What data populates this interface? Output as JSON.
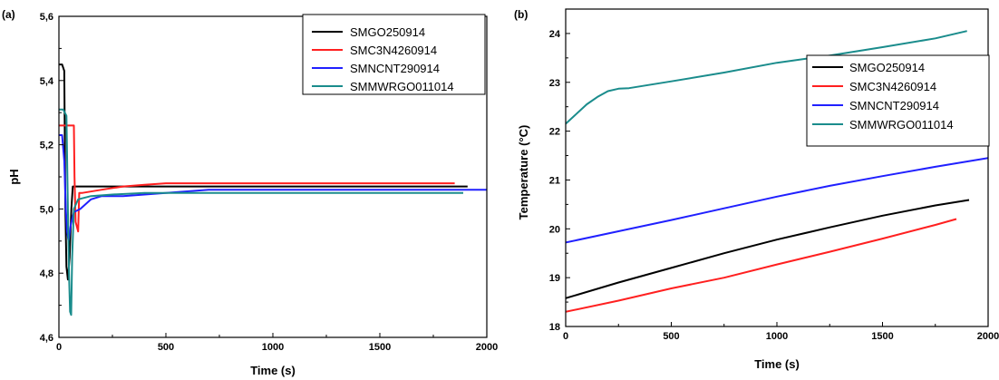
{
  "chart_data": [
    {
      "panel_label": "(a)",
      "type": "line",
      "xlabel": "Time (s)",
      "ylabel": "pH",
      "xlim": [
        0,
        2000
      ],
      "ylim": [
        4.6,
        5.6
      ],
      "xticks": [
        0,
        500,
        1000,
        1500,
        2000
      ],
      "xtick_labels": [
        "0",
        "500",
        "1000",
        "1500",
        "2000"
      ],
      "yticks": [
        4.6,
        4.8,
        5.0,
        5.2,
        5.4,
        5.6
      ],
      "ytick_labels": [
        "4,6",
        "4,8",
        "5,0",
        "5,2",
        "5,4",
        "5,6"
      ],
      "grid": false,
      "legend_position": "top-right",
      "series": [
        {
          "name": "SMGO250914",
          "color": "#000000",
          "points": [
            [
              0,
              5.45
            ],
            [
              15,
              5.45
            ],
            [
              25,
              5.43
            ],
            [
              30,
              5.0
            ],
            [
              35,
              4.82
            ],
            [
              42,
              4.78
            ],
            [
              50,
              4.85
            ],
            [
              58,
              5.0
            ],
            [
              65,
              5.07
            ],
            [
              100,
              5.07
            ],
            [
              500,
              5.07
            ],
            [
              1000,
              5.07
            ],
            [
              1500,
              5.07
            ],
            [
              1910,
              5.07
            ]
          ]
        },
        {
          "name": "SMC3N4260914",
          "color": "#ff2020",
          "points": [
            [
              0,
              5.26
            ],
            [
              70,
              5.26
            ],
            [
              73,
              5.1
            ],
            [
              78,
              4.96
            ],
            [
              90,
              4.93
            ],
            [
              95,
              5.05
            ],
            [
              110,
              5.05
            ],
            [
              200,
              5.06
            ],
            [
              300,
              5.07
            ],
            [
              400,
              5.075
            ],
            [
              500,
              5.08
            ],
            [
              550,
              5.08
            ],
            [
              1000,
              5.08
            ],
            [
              1500,
              5.08
            ],
            [
              1850,
              5.08
            ]
          ]
        },
        {
          "name": "SMNCNT290914",
          "color": "#2020ff",
          "points": [
            [
              0,
              5.23
            ],
            [
              15,
              5.23
            ],
            [
              25,
              5.15
            ],
            [
              32,
              5.0
            ],
            [
              38,
              4.93
            ],
            [
              45,
              4.9
            ],
            [
              55,
              4.95
            ],
            [
              70,
              4.99
            ],
            [
              100,
              5.0
            ],
            [
              150,
              5.03
            ],
            [
              200,
              5.04
            ],
            [
              300,
              5.04
            ],
            [
              500,
              5.05
            ],
            [
              700,
              5.06
            ],
            [
              1000,
              5.06
            ],
            [
              1500,
              5.06
            ],
            [
              2000,
              5.06
            ]
          ]
        },
        {
          "name": "SMMWRGO011014",
          "color": "#1a8c8c",
          "points": [
            [
              0,
              5.31
            ],
            [
              20,
              5.31
            ],
            [
              35,
              5.29
            ],
            [
              42,
              5.0
            ],
            [
              47,
              4.8
            ],
            [
              52,
              4.68
            ],
            [
              57,
              4.67
            ],
            [
              62,
              4.85
            ],
            [
              70,
              5.0
            ],
            [
              90,
              5.03
            ],
            [
              150,
              5.04
            ],
            [
              250,
              5.045
            ],
            [
              400,
              5.05
            ],
            [
              1000,
              5.05
            ],
            [
              1500,
              5.05
            ],
            [
              1890,
              5.05
            ]
          ]
        }
      ]
    },
    {
      "panel_label": "(b)",
      "type": "line",
      "xlabel": "Time (s)",
      "ylabel": "Temperature (°C)",
      "xlim": [
        0,
        2000
      ],
      "ylim": [
        18,
        24.5
      ],
      "xticks": [
        0,
        500,
        1000,
        1500,
        2000
      ],
      "xtick_labels": [
        "0",
        "500",
        "1000",
        "1500",
        "2000"
      ],
      "yticks": [
        18,
        19,
        20,
        21,
        22,
        23,
        24
      ],
      "ytick_labels": [
        "18",
        "19",
        "20",
        "21",
        "22",
        "23",
        "24"
      ],
      "grid": false,
      "legend_position": "top-right",
      "series": [
        {
          "name": "SMGO250914",
          "color": "#000000",
          "points": [
            [
              0,
              18.58
            ],
            [
              250,
              18.9
            ],
            [
              500,
              19.2
            ],
            [
              750,
              19.5
            ],
            [
              1000,
              19.78
            ],
            [
              1250,
              20.03
            ],
            [
              1500,
              20.27
            ],
            [
              1750,
              20.48
            ],
            [
              1910,
              20.59
            ]
          ]
        },
        {
          "name": "SMC3N4260914",
          "color": "#ff2020",
          "points": [
            [
              0,
              18.3
            ],
            [
              250,
              18.53
            ],
            [
              500,
              18.78
            ],
            [
              750,
              19.0
            ],
            [
              1000,
              19.27
            ],
            [
              1250,
              19.53
            ],
            [
              1500,
              19.8
            ],
            [
              1750,
              20.08
            ],
            [
              1850,
              20.2
            ]
          ]
        },
        {
          "name": "SMNCNT290914",
          "color": "#2020ff",
          "points": [
            [
              0,
              19.72
            ],
            [
              250,
              19.95
            ],
            [
              500,
              20.18
            ],
            [
              750,
              20.42
            ],
            [
              1000,
              20.66
            ],
            [
              1250,
              20.88
            ],
            [
              1500,
              21.08
            ],
            [
              1750,
              21.27
            ],
            [
              2000,
              21.45
            ]
          ]
        },
        {
          "name": "SMMWRGO011014",
          "color": "#1a8c8c",
          "points": [
            [
              0,
              22.15
            ],
            [
              50,
              22.35
            ],
            [
              100,
              22.55
            ],
            [
              150,
              22.7
            ],
            [
              200,
              22.82
            ],
            [
              250,
              22.87
            ],
            [
              300,
              22.88
            ],
            [
              500,
              23.02
            ],
            [
              750,
              23.2
            ],
            [
              1000,
              23.4
            ],
            [
              1250,
              23.55
            ],
            [
              1500,
              23.72
            ],
            [
              1750,
              23.9
            ],
            [
              1900,
              24.05
            ]
          ]
        }
      ]
    }
  ]
}
